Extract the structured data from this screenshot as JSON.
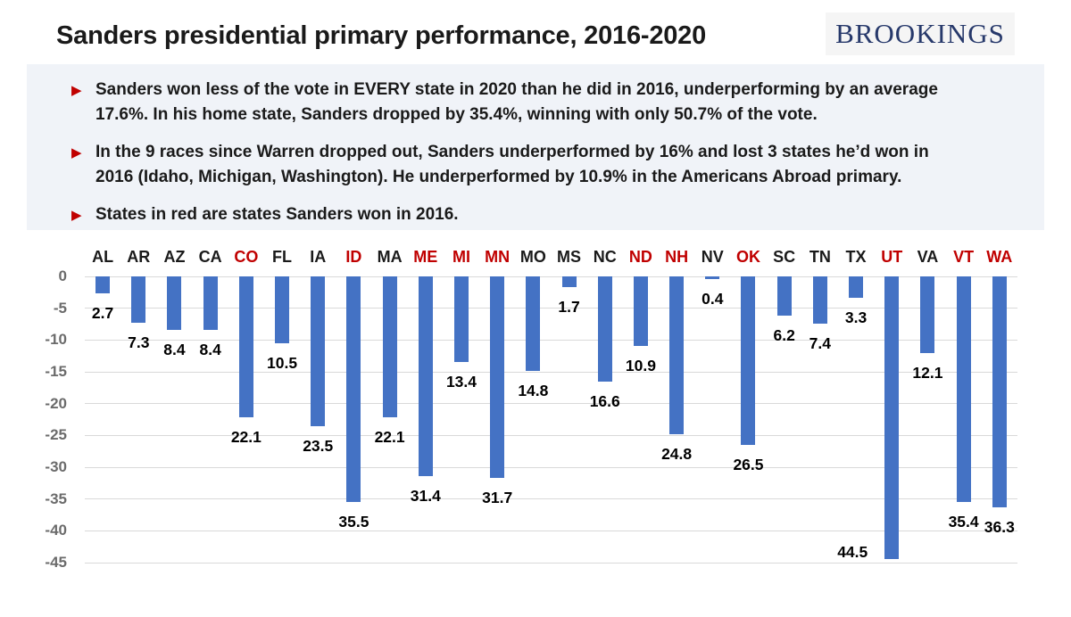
{
  "title": "Sanders presidential primary performance, 2016-2020",
  "logo": {
    "text": "BROOKINGS",
    "color": "#27396B",
    "background": "#f5f5f5"
  },
  "bullet_icon": "▶",
  "bullets": [
    {
      "lines": [
        "Sanders won less of the vote in EVERY state in 2020 than he did in 2016, underperforming  by an average",
        "17.6%. In his home state, Sanders dropped  by 35.4%, winning with only 50.7% of the vote."
      ]
    },
    {
      "lines": [
        "In the 9 races since Warren dropped out, Sanders underperformed  by 16% and lost 3 states he’d won in",
        "2016 (Idaho, Michigan, Washington).  He underperformed  by 10.9% in the Americans  Abroad primary."
      ]
    },
    {
      "lines": [
        "States in red are states Sanders won in 2016."
      ]
    }
  ],
  "chart_data": {
    "type": "bar",
    "title": "Sanders presidential primary performance, 2016-2020",
    "xlabel": "",
    "ylabel": "",
    "ylim": [
      -45,
      0
    ],
    "yticks": [
      0,
      -5,
      -10,
      -15,
      -20,
      -25,
      -30,
      -35,
      -40,
      -45
    ],
    "grid": true,
    "legend": "none",
    "bar_color": "#4472C4",
    "category_color_default": "#1a1a1a",
    "category_color_won_2016": "#C00000",
    "categories": [
      "AL",
      "AR",
      "AZ",
      "CA",
      "CO",
      "FL",
      "IA",
      "ID",
      "MA",
      "ME",
      "MI",
      "MN",
      "MO",
      "MS",
      "NC",
      "ND",
      "NH",
      "NV",
      "OK",
      "SC",
      "TN",
      "TX",
      "UT",
      "VA",
      "VT",
      "WA"
    ],
    "values": [
      -2.7,
      -7.3,
      -8.4,
      -8.4,
      -22.1,
      -10.5,
      -23.5,
      -35.5,
      -22.1,
      -31.4,
      -13.4,
      -31.7,
      -14.8,
      -1.7,
      -16.6,
      -10.9,
      -24.8,
      -0.4,
      -26.5,
      -6.2,
      -7.4,
      -3.3,
      -44.5,
      -12.1,
      -35.4,
      -36.3
    ],
    "data_labels": [
      "2.7",
      "7.3",
      "8.4",
      "8.4",
      "22.1",
      "10.5",
      "23.5",
      "35.5",
      "22.1",
      "31.4",
      "13.4",
      "31.7",
      "14.8",
      "1.7",
      "16.6",
      "10.9",
      "24.8",
      "0.4",
      "26.5",
      "6.2",
      "7.4",
      "3.3",
      "44.5",
      "12.1",
      "35.4",
      "36.3"
    ],
    "won_2016_states": [
      "CO",
      "ID",
      "ME",
      "MI",
      "MN",
      "ND",
      "NH",
      "OK",
      "UT",
      "VT",
      "WA"
    ]
  }
}
